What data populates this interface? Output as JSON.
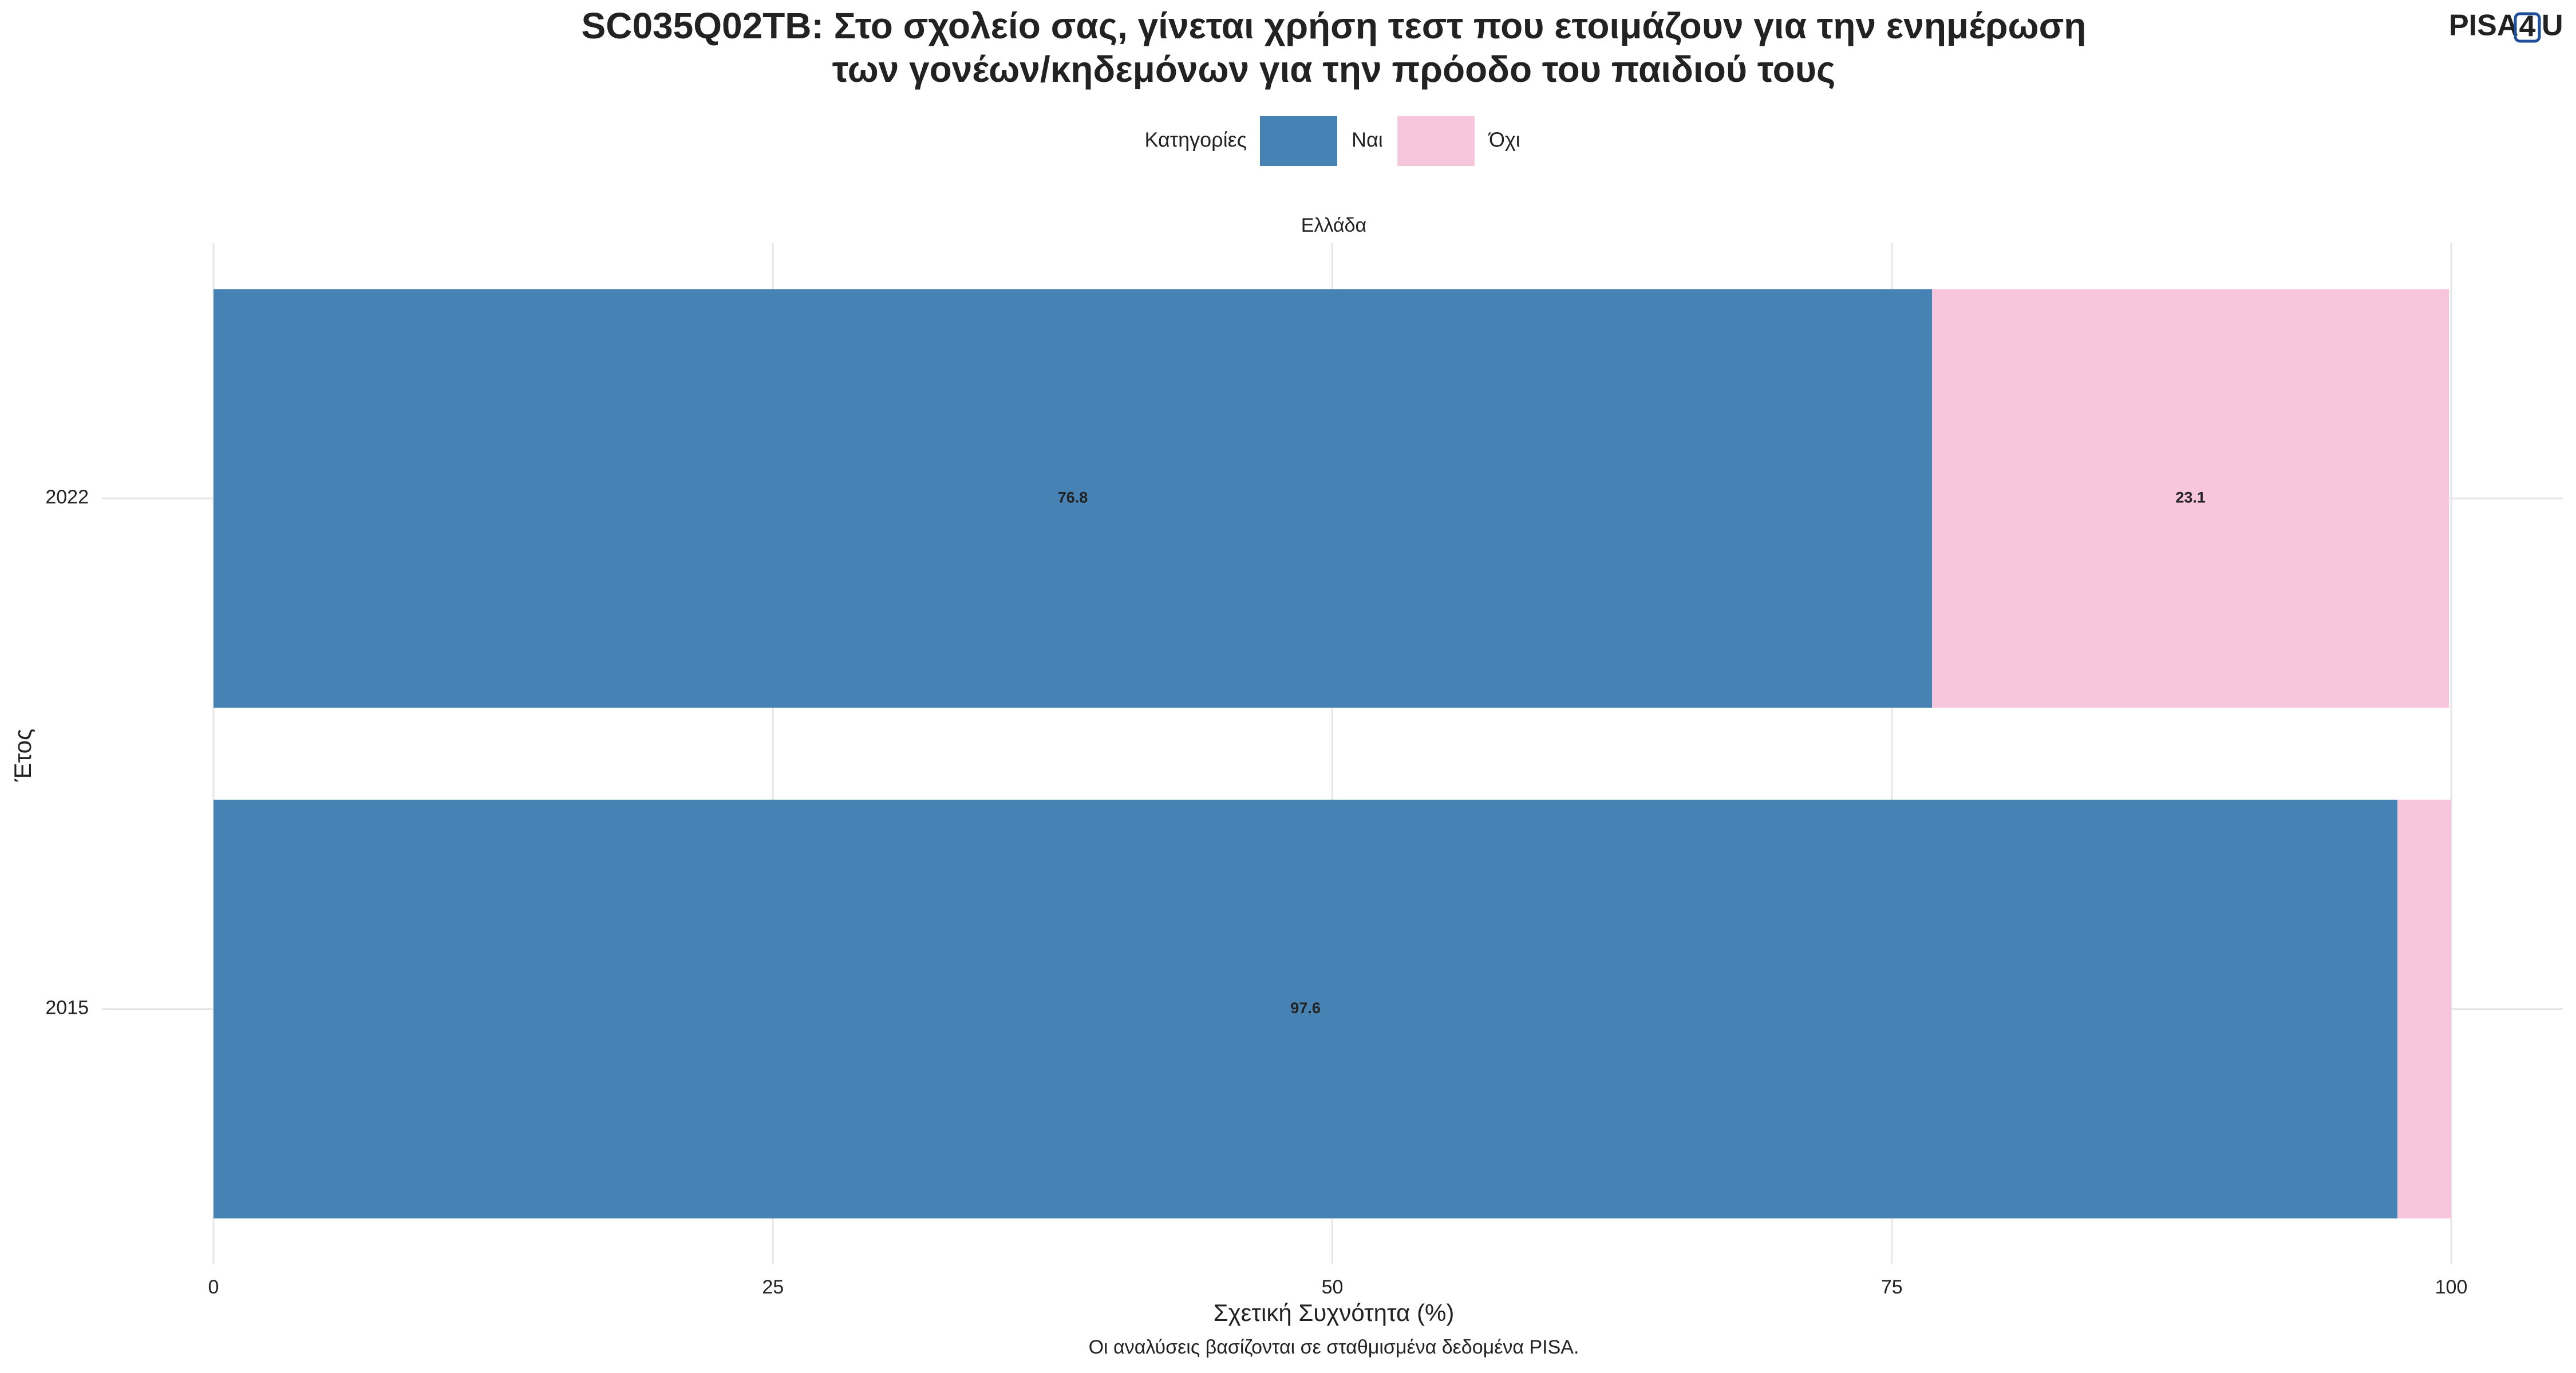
{
  "chart_data": {
    "type": "stacked-barh",
    "title": [
      "SC035Q02TB: Στο σχολείο σας, γίνεται χρήση τεστ που ετοιμάζουν για την ενημέρωση",
      "των γονέων/κηδεμόνων για την πρόοδο του παιδιού τους"
    ],
    "logo": [
      "PISA",
      "4",
      "U"
    ],
    "legend_title": "Κατηγορίες",
    "facet": "Ελλάδα",
    "categories": [
      "2022",
      "2015"
    ],
    "series": [
      {
        "name": "Ναι",
        "color": "#4682b4",
        "values": [
          76.8,
          97.6
        ]
      },
      {
        "name": "Όχι",
        "color": "#f7c6dc",
        "values": [
          23.1,
          2.4
        ],
        "value_labels": [
          "23.1",
          null
        ]
      }
    ],
    "xlim": [
      0,
      100
    ],
    "xticks": [
      0,
      25,
      50,
      75,
      100
    ],
    "xlabel": "Σχετική Συχνότητα (%)",
    "ylabel": "Έτος",
    "caption": "Οι αναλύσεις βασίζονται σε σταθμισμένα δεδομένα PISA.",
    "grid": true,
    "legend": "top"
  }
}
